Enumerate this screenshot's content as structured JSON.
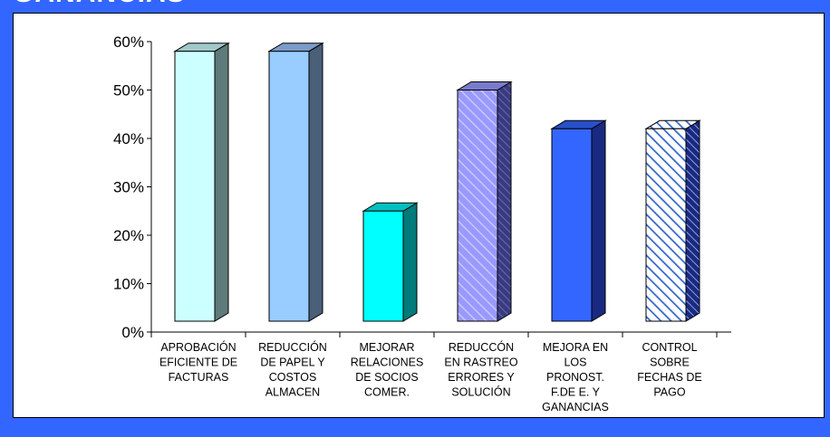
{
  "header": {
    "title": "GANANCIAS"
  },
  "chart_data": {
    "type": "bar",
    "categories": [
      [
        "APROBACIÓN",
        "EFICIENTE DE",
        "FACTURAS"
      ],
      [
        "REDUCCIÓN",
        "DE PAPEL Y",
        "COSTOS",
        "ALMACEN"
      ],
      [
        "MEJORAR",
        "RELACIONES",
        "DE SOCIOS",
        "COMER."
      ],
      [
        "REDUCCÓN",
        "EN RASTREO",
        "ERRORES Y",
        "SOLUCIÓN"
      ],
      [
        "MEJORA EN",
        "LOS",
        "PRONOST.",
        "F.DE E. Y",
        "GANANCIAS"
      ],
      [
        "CONTROL",
        "SOBRE",
        "FECHAS DE",
        "PAGO"
      ]
    ],
    "values": [
      0.58,
      0.58,
      0.25,
      0.5,
      0.42,
      0.42
    ],
    "ylim": [
      0,
      0.6
    ],
    "yticks": [
      0,
      0.1,
      0.2,
      0.3,
      0.4,
      0.5,
      0.6
    ],
    "ytick_labels": [
      "0%",
      "10%",
      "20%",
      "30%",
      "40%",
      "50%",
      "60%"
    ],
    "grid": false,
    "bar_styles": [
      {
        "front": "#ccffff",
        "side": "#5f7a7a",
        "top": "#a0c8c8",
        "pattern": "none"
      },
      {
        "front": "#99ccff",
        "side": "#4a5f78",
        "top": "#7a9cc8",
        "pattern": "none"
      },
      {
        "front": "#00ffff",
        "side": "#007a7a",
        "top": "#00c0c0",
        "pattern": "none"
      },
      {
        "front": "#9999ff",
        "side": "#4a4a99",
        "top": "#7a7acc",
        "pattern": "diagonal"
      },
      {
        "front": "#3366ff",
        "side": "#1a2a80",
        "top": "#2850c8",
        "pattern": "none"
      },
      {
        "front": "#3366ff",
        "side": "#1a2a80",
        "top": "#2850c8",
        "pattern": "diagonal-white"
      }
    ]
  }
}
